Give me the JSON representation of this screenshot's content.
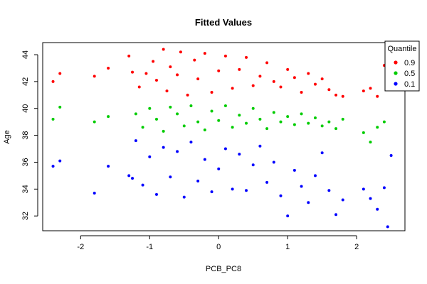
{
  "chart_data": {
    "type": "scatter",
    "title": "Fitted Values",
    "xlabel": "PCB_PC8",
    "ylabel": "Age",
    "xlim": [
      -2.55,
      2.7
    ],
    "ylim": [
      30.9,
      44.9
    ],
    "xticks": [
      -2,
      -1,
      0,
      1,
      2
    ],
    "yticks": [
      32,
      34,
      36,
      38,
      40,
      42,
      44
    ],
    "grid": false,
    "legend": {
      "title": "Quantile",
      "placement": "top-right"
    },
    "series": [
      {
        "name": "0.9",
        "color": "#ff0000",
        "points": [
          [
            -2.4,
            42.0
          ],
          [
            -2.3,
            42.6
          ],
          [
            -1.8,
            42.4
          ],
          [
            -1.6,
            43.0
          ],
          [
            -1.3,
            43.9
          ],
          [
            -1.25,
            42.7
          ],
          [
            -1.15,
            41.6
          ],
          [
            -1.05,
            42.6
          ],
          [
            -0.95,
            43.5
          ],
          [
            -0.9,
            42.1
          ],
          [
            -0.8,
            44.4
          ],
          [
            -0.75,
            41.3
          ],
          [
            -0.7,
            43.1
          ],
          [
            -0.6,
            42.5
          ],
          [
            -0.55,
            44.2
          ],
          [
            -0.45,
            41.0
          ],
          [
            -0.35,
            43.6
          ],
          [
            -0.3,
            42.2
          ],
          [
            -0.2,
            44.1
          ],
          [
            -0.1,
            41.2
          ],
          [
            0.0,
            42.8
          ],
          [
            0.1,
            43.9
          ],
          [
            0.2,
            41.5
          ],
          [
            0.3,
            42.9
          ],
          [
            0.4,
            43.8
          ],
          [
            0.5,
            41.7
          ],
          [
            0.6,
            42.4
          ],
          [
            0.7,
            43.4
          ],
          [
            0.8,
            42.0
          ],
          [
            0.9,
            41.6
          ],
          [
            1.0,
            42.9
          ],
          [
            1.1,
            42.3
          ],
          [
            1.2,
            41.2
          ],
          [
            1.3,
            42.6
          ],
          [
            1.4,
            41.8
          ],
          [
            1.5,
            42.2
          ],
          [
            1.6,
            41.4
          ],
          [
            1.7,
            41.0
          ],
          [
            1.8,
            40.9
          ],
          [
            2.1,
            41.3
          ],
          [
            2.2,
            41.5
          ],
          [
            2.3,
            40.9
          ],
          [
            2.4,
            43.2
          ],
          [
            2.45,
            41.9
          ]
        ]
      },
      {
        "name": "0.5",
        "color": "#00cc00",
        "points": [
          [
            -2.4,
            39.2
          ],
          [
            -2.3,
            40.1
          ],
          [
            -1.8,
            39.0
          ],
          [
            -1.6,
            39.4
          ],
          [
            -1.2,
            39.6
          ],
          [
            -1.1,
            38.6
          ],
          [
            -1.0,
            40.0
          ],
          [
            -0.9,
            39.2
          ],
          [
            -0.8,
            38.3
          ],
          [
            -0.7,
            40.1
          ],
          [
            -0.6,
            39.6
          ],
          [
            -0.5,
            38.7
          ],
          [
            -0.4,
            40.2
          ],
          [
            -0.3,
            39.0
          ],
          [
            -0.2,
            38.4
          ],
          [
            -0.1,
            39.8
          ],
          [
            0.0,
            39.1
          ],
          [
            0.1,
            40.2
          ],
          [
            0.2,
            38.6
          ],
          [
            0.3,
            39.5
          ],
          [
            0.4,
            38.9
          ],
          [
            0.5,
            40.0
          ],
          [
            0.6,
            39.2
          ],
          [
            0.7,
            38.5
          ],
          [
            0.8,
            39.7
          ],
          [
            0.9,
            39.0
          ],
          [
            1.0,
            39.4
          ],
          [
            1.1,
            38.8
          ],
          [
            1.2,
            39.6
          ],
          [
            1.3,
            38.9
          ],
          [
            1.4,
            39.3
          ],
          [
            1.5,
            38.7
          ],
          [
            1.6,
            39.0
          ],
          [
            1.7,
            38.5
          ],
          [
            1.8,
            39.2
          ],
          [
            2.1,
            38.2
          ],
          [
            2.2,
            37.5
          ],
          [
            2.3,
            38.6
          ],
          [
            2.4,
            39.0
          ]
        ]
      },
      {
        "name": "0.1",
        "color": "#0000ff",
        "points": [
          [
            -2.4,
            35.7
          ],
          [
            -2.3,
            36.1
          ],
          [
            -1.8,
            33.7
          ],
          [
            -1.6,
            35.7
          ],
          [
            -1.3,
            35.0
          ],
          [
            -1.25,
            34.8
          ],
          [
            -1.2,
            37.6
          ],
          [
            -1.1,
            34.3
          ],
          [
            -1.0,
            36.4
          ],
          [
            -0.9,
            33.6
          ],
          [
            -0.8,
            37.1
          ],
          [
            -0.7,
            34.9
          ],
          [
            -0.6,
            36.8
          ],
          [
            -0.5,
            33.4
          ],
          [
            -0.4,
            37.5
          ],
          [
            -0.3,
            34.6
          ],
          [
            -0.2,
            36.2
          ],
          [
            -0.1,
            33.8
          ],
          [
            0.0,
            35.5
          ],
          [
            0.1,
            37.0
          ],
          [
            0.2,
            34.0
          ],
          [
            0.3,
            36.6
          ],
          [
            0.4,
            33.9
          ],
          [
            0.5,
            35.8
          ],
          [
            0.6,
            37.2
          ],
          [
            0.7,
            34.5
          ],
          [
            0.8,
            36.0
          ],
          [
            0.9,
            33.5
          ],
          [
            1.0,
            32.0
          ],
          [
            1.1,
            35.4
          ],
          [
            1.2,
            34.2
          ],
          [
            1.3,
            33.0
          ],
          [
            1.4,
            35.0
          ],
          [
            1.5,
            36.7
          ],
          [
            1.6,
            33.9
          ],
          [
            1.7,
            32.1
          ],
          [
            1.8,
            33.2
          ],
          [
            2.1,
            34.0
          ],
          [
            2.2,
            33.3
          ],
          [
            2.3,
            32.5
          ],
          [
            2.4,
            34.1
          ],
          [
            2.45,
            31.2
          ],
          [
            2.5,
            36.5
          ]
        ]
      }
    ]
  }
}
